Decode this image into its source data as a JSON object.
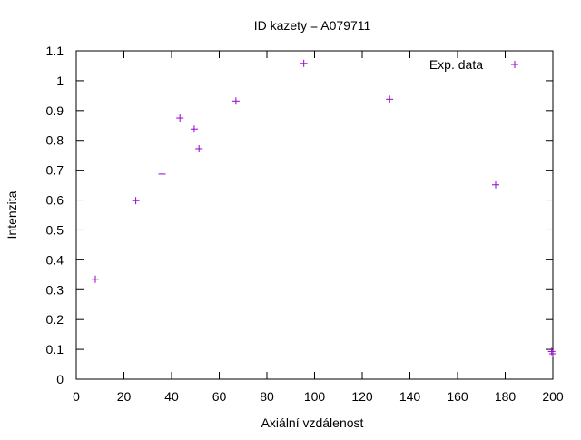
{
  "chart_data": {
    "type": "scatter",
    "title": "ID kazety = A079711",
    "xlabel": "Axiální vzdálenost",
    "ylabel": "Intenzita",
    "xlim": [
      0,
      200
    ],
    "ylim": [
      0,
      1.1
    ],
    "xticks": [
      0,
      20,
      40,
      60,
      80,
      100,
      120,
      140,
      160,
      180,
      200
    ],
    "yticks": [
      0,
      0.1,
      0.2,
      0.3,
      0.4,
      0.5,
      0.6,
      0.7,
      0.8,
      0.9,
      1,
      1.1
    ],
    "grid": false,
    "legend_position": "top-right",
    "series": [
      {
        "name": "Exp. data",
        "color": "#9400d3",
        "marker": "plus",
        "points": [
          {
            "x": 8,
            "y": 0.335
          },
          {
            "x": 25,
            "y": 0.598
          },
          {
            "x": 36,
            "y": 0.687
          },
          {
            "x": 43.5,
            "y": 0.875
          },
          {
            "x": 49.5,
            "y": 0.838
          },
          {
            "x": 51.5,
            "y": 0.772
          },
          {
            "x": 67,
            "y": 0.932
          },
          {
            "x": 95.5,
            "y": 1.058
          },
          {
            "x": 131.5,
            "y": 0.938
          },
          {
            "x": 176,
            "y": 0.651
          },
          {
            "x": 199.5,
            "y": 0.093
          },
          {
            "x": 200,
            "y": 0.085
          }
        ]
      }
    ]
  }
}
